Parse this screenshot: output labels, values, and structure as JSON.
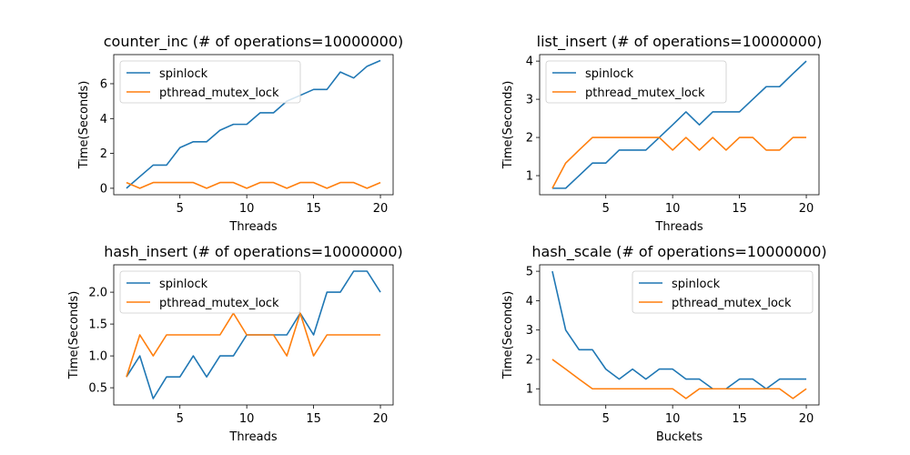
{
  "chart_data": [
    {
      "type": "line",
      "title": "counter_inc (# of operations=10000000)",
      "xlabel": "Threads",
      "ylabel": "Time(Seconds)",
      "x": [
        1,
        2,
        3,
        4,
        5,
        6,
        7,
        8,
        9,
        10,
        11,
        12,
        13,
        14,
        15,
        16,
        17,
        18,
        19,
        20
      ],
      "xlim": [
        0.05,
        20.95
      ],
      "ylim": [
        -0.37,
        7.67
      ],
      "xticks": [
        5,
        10,
        15,
        20
      ],
      "yticks": [
        0,
        2,
        4,
        6
      ],
      "legend_position": "top-left",
      "series": [
        {
          "name": "spinlock",
          "color": "#1f77b4",
          "values": [
            0,
            0.67,
            1.33,
            1.33,
            2.33,
            2.67,
            2.67,
            3.33,
            3.67,
            3.67,
            4.33,
            4.33,
            5.0,
            5.33,
            5.67,
            5.67,
            6.67,
            6.33,
            7.0,
            7.33
          ]
        },
        {
          "name": "pthread_mutex_lock",
          "color": "#ff7f0e",
          "values": [
            0.33,
            0,
            0.33,
            0.33,
            0.33,
            0.33,
            0,
            0.33,
            0.33,
            0,
            0.33,
            0.33,
            0,
            0.33,
            0.33,
            0,
            0.33,
            0.33,
            0,
            0.33
          ]
        }
      ]
    },
    {
      "type": "line",
      "title": "list_insert (# of operations=10000000)",
      "xlabel": "Threads",
      "ylabel": "Time(Seconds)",
      "x": [
        1,
        2,
        3,
        4,
        5,
        6,
        7,
        8,
        9,
        10,
        11,
        12,
        13,
        14,
        15,
        16,
        17,
        18,
        19,
        20
      ],
      "xlim": [
        0.05,
        20.95
      ],
      "ylim": [
        0.5,
        4.17
      ],
      "xticks": [
        5,
        10,
        15,
        20
      ],
      "yticks": [
        1,
        2,
        3,
        4
      ],
      "legend_position": "top-left",
      "series": [
        {
          "name": "spinlock",
          "color": "#1f77b4",
          "values": [
            0.67,
            0.67,
            1.0,
            1.33,
            1.33,
            1.67,
            1.67,
            1.67,
            2.0,
            2.33,
            2.67,
            2.33,
            2.67,
            2.67,
            2.67,
            3.0,
            3.33,
            3.33,
            3.67,
            4.0
          ]
        },
        {
          "name": "pthread_mutex_lock",
          "color": "#ff7f0e",
          "values": [
            0.67,
            1.33,
            1.67,
            2.0,
            2.0,
            2.0,
            2.0,
            2.0,
            2.0,
            1.67,
            2.0,
            1.67,
            2.0,
            1.67,
            2.0,
            2.0,
            1.67,
            1.67,
            2.0,
            2.0
          ]
        }
      ]
    },
    {
      "type": "line",
      "title": "hash_insert (# of operations=10000000)",
      "xlabel": "Threads",
      "ylabel": "Time(Seconds)",
      "x": [
        1,
        2,
        3,
        4,
        5,
        6,
        7,
        8,
        9,
        10,
        11,
        12,
        13,
        14,
        15,
        16,
        17,
        18,
        19,
        20
      ],
      "xlim": [
        0.05,
        20.95
      ],
      "ylim": [
        0.23,
        2.43
      ],
      "xticks": [
        5,
        10,
        15,
        20
      ],
      "yticks": [
        0.5,
        1.0,
        1.5,
        2.0
      ],
      "ytick_labels": [
        "0.5",
        "1.0",
        "1.5",
        "2.0"
      ],
      "legend_position": "top-left",
      "series": [
        {
          "name": "spinlock",
          "color": "#1f77b4",
          "values": [
            0.67,
            1.0,
            0.33,
            0.67,
            0.67,
            1.0,
            0.67,
            1.0,
            1.0,
            1.33,
            1.33,
            1.33,
            1.33,
            1.67,
            1.33,
            2.0,
            2.0,
            2.33,
            2.33,
            2.0
          ]
        },
        {
          "name": "pthread_mutex_lock",
          "color": "#ff7f0e",
          "values": [
            0.67,
            1.33,
            1.0,
            1.33,
            1.33,
            1.33,
            1.33,
            1.33,
            1.67,
            1.33,
            1.33,
            1.33,
            1.0,
            1.67,
            1.0,
            1.33,
            1.33,
            1.33,
            1.33,
            1.33
          ]
        }
      ]
    },
    {
      "type": "line",
      "title": "hash_scale (# of operations=10000000)",
      "xlabel": "Buckets",
      "ylabel": "Time(Seconds)",
      "x": [
        1,
        2,
        3,
        4,
        5,
        6,
        7,
        8,
        9,
        10,
        11,
        12,
        13,
        14,
        15,
        16,
        17,
        18,
        19,
        20
      ],
      "xlim": [
        0.05,
        20.95
      ],
      "ylim": [
        0.45,
        5.22
      ],
      "xticks": [
        5,
        10,
        15,
        20
      ],
      "yticks": [
        1,
        2,
        3,
        4,
        5
      ],
      "legend_position": "top-right",
      "series": [
        {
          "name": "spinlock",
          "color": "#1f77b4",
          "values": [
            5.0,
            3.0,
            2.33,
            2.33,
            1.67,
            1.33,
            1.67,
            1.33,
            1.67,
            1.67,
            1.33,
            1.33,
            1.0,
            1.0,
            1.33,
            1.33,
            1.0,
            1.33,
            1.33,
            1.33
          ]
        },
        {
          "name": "pthread_mutex_lock",
          "color": "#ff7f0e",
          "values": [
            2.0,
            1.67,
            1.33,
            1.0,
            1.0,
            1.0,
            1.0,
            1.0,
            1.0,
            1.0,
            0.67,
            1.0,
            1.0,
            1.0,
            1.0,
            1.0,
            1.0,
            1.0,
            0.67,
            1.0
          ]
        }
      ]
    }
  ]
}
